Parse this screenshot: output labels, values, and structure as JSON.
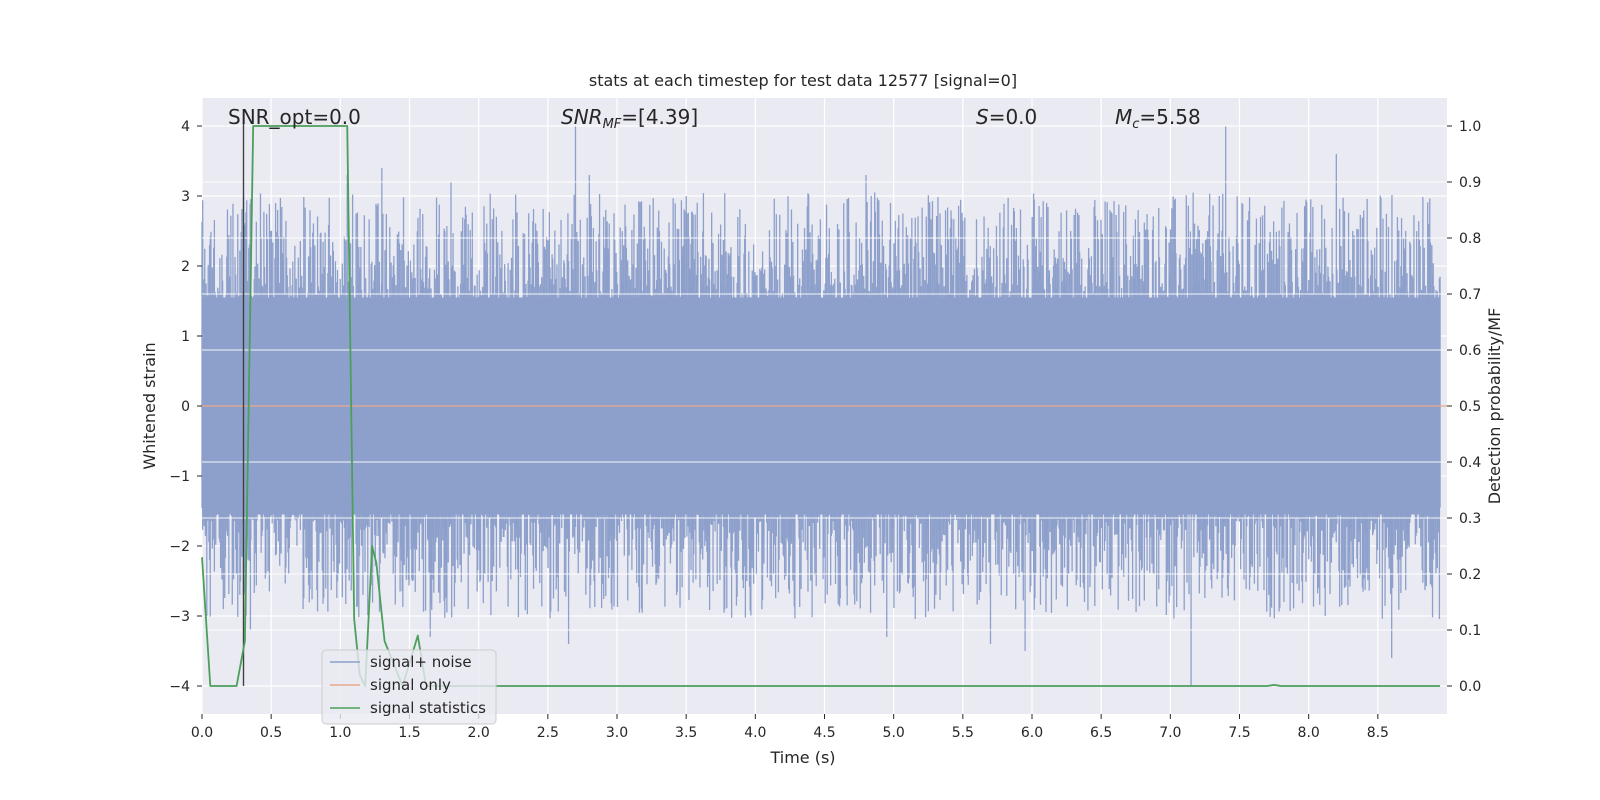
{
  "chart_data": {
    "type": "line",
    "title": "stats at each timestep for test data 12577 [signal=0]",
    "xlabel": "Time (s)",
    "ylabel": "Whitened strain",
    "ylabel_right": "Detection probability/MF",
    "xlim": [
      0.0,
      9.0
    ],
    "ylim": [
      -4.4,
      4.4
    ],
    "ylim_right": [
      -0.05,
      1.05
    ],
    "x_ticks": [
      "0.0",
      "0.5",
      "1.0",
      "1.5",
      "2.0",
      "2.5",
      "3.0",
      "3.5",
      "4.0",
      "4.5",
      "5.0",
      "5.5",
      "6.0",
      "6.5",
      "7.0",
      "7.5",
      "8.0",
      "8.5"
    ],
    "y_ticks": [
      "−4",
      "−3",
      "−2",
      "−1",
      "0",
      "1",
      "2",
      "3",
      "4"
    ],
    "y_ticks_right": [
      "0.0",
      "0.1",
      "0.2",
      "0.3",
      "0.4",
      "0.5",
      "0.6",
      "0.7",
      "0.8",
      "0.9",
      "1.0"
    ],
    "grid": true,
    "annotations": {
      "snr_opt": "SNR_opt=0.0",
      "snr_mf_main": "SNR",
      "snr_mf_sub": "MF",
      "snr_mf_value": "=[4.39]",
      "s_symbol": "S",
      "s_value": "=0.0",
      "mc_main": "M",
      "mc_sub": "c",
      "mc_value": "=5.58"
    },
    "series": [
      {
        "name": "signal+ noise",
        "axis": "left",
        "color": "#8da0cb",
        "style": "dense noise, |amplitude| mostly 1.5–2.5 with spikes to about ±4",
        "peaks": [
          {
            "x": 0.3,
            "y": 3.0
          },
          {
            "x": 0.35,
            "y": -3.2
          },
          {
            "x": 1.05,
            "y": 3.3
          },
          {
            "x": 1.3,
            "y": 3.4
          },
          {
            "x": 1.65,
            "y": -3.3
          },
          {
            "x": 1.8,
            "y": 3.2
          },
          {
            "x": 2.65,
            "y": -3.4
          },
          {
            "x": 2.7,
            "y": 4.0
          },
          {
            "x": 2.8,
            "y": 3.3
          },
          {
            "x": 4.8,
            "y": 3.3
          },
          {
            "x": 4.95,
            "y": -3.3
          },
          {
            "x": 5.7,
            "y": -3.4
          },
          {
            "x": 5.95,
            "y": -3.5
          },
          {
            "x": 7.15,
            "y": -4.0
          },
          {
            "x": 7.4,
            "y": 4.0
          },
          {
            "x": 8.2,
            "y": 3.6
          },
          {
            "x": 8.6,
            "y": -3.6
          }
        ]
      },
      {
        "name": "signal only",
        "axis": "left",
        "color": "#e8a88b",
        "x": [
          0.0,
          9.0
        ],
        "y": [
          0.0,
          0.0
        ]
      },
      {
        "name": "signal statistics",
        "axis": "right",
        "color": "#4c9f5a",
        "x": [
          0.0,
          0.06,
          0.25,
          0.31,
          0.37,
          0.4,
          1.05,
          1.1,
          1.14,
          1.18,
          1.23,
          1.26,
          1.32,
          1.45,
          1.56,
          1.62,
          1.7,
          7.7,
          7.75,
          7.8,
          8.95
        ],
        "y": [
          0.23,
          0.0,
          0.0,
          0.08,
          1.0,
          1.0,
          1.0,
          0.12,
          0.02,
          0.0,
          0.25,
          0.22,
          0.08,
          0.0,
          0.09,
          0.0,
          0.0,
          0.0,
          0.002,
          0.0,
          0.0
        ]
      }
    ],
    "vlines": [
      {
        "x": 0.3,
        "y0": -4.0,
        "y1": 4.05,
        "color": "#404040"
      }
    ],
    "legend": {
      "placement": "lower-left",
      "labels": [
        "signal+ noise",
        "signal only",
        "signal statistics"
      ]
    }
  }
}
